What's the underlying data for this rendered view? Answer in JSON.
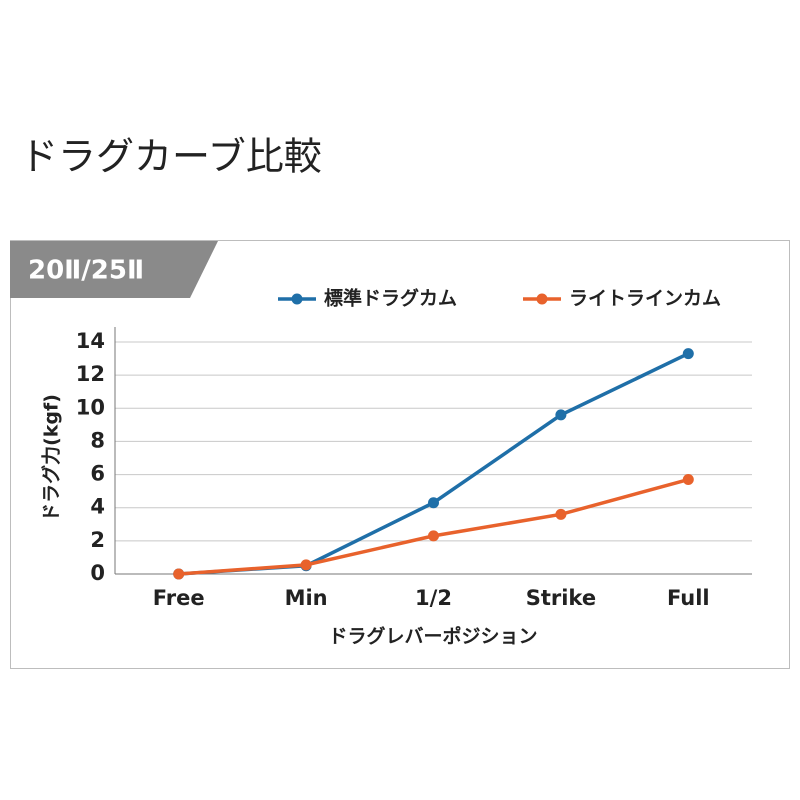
{
  "chart_data": {
    "type": "line",
    "title": "ドラグカーブ比較",
    "subtitle": "20Ⅱ/25Ⅱ",
    "x_label": "ドラグレバーポジション",
    "y_label": "ドラグ力(kgf)",
    "categories": [
      "Free",
      "Min",
      "1/2",
      "Strike",
      "Full"
    ],
    "series": [
      {
        "name": "標準ドラグカム",
        "color": "#1f6fa8",
        "values": [
          0,
          0.5,
          4.3,
          9.6,
          13.3
        ]
      },
      {
        "name": "ライトラインカム",
        "color": "#e8622c",
        "values": [
          0,
          0.55,
          2.3,
          3.6,
          5.7
        ]
      }
    ],
    "ylim": [
      0,
      14
    ],
    "yticks": [
      0,
      2,
      4,
      6,
      8,
      10,
      12,
      14
    ],
    "grid": true
  }
}
